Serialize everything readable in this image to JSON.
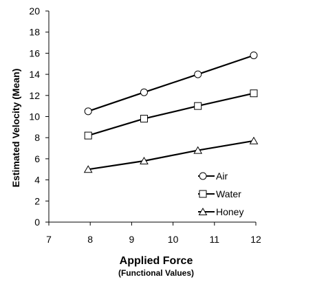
{
  "chart_data": {
    "type": "line",
    "xlabel": "Applied Force",
    "xlabel_sub": "(Functional Values)",
    "ylabel": "Estimated Velocity (Mean)",
    "xlim": [
      7,
      12
    ],
    "ylim": [
      0,
      20
    ],
    "x_ticks": [
      "7",
      "8",
      "9",
      "10",
      "11",
      "12"
    ],
    "y_ticks": [
      "0",
      "2",
      "4",
      "6",
      "8",
      "10",
      "12",
      "14",
      "16",
      "18",
      "20"
    ],
    "grid": false,
    "legend_position": "bottom-right",
    "series": [
      {
        "name": "Air",
        "marker": "circle",
        "x": [
          7.95,
          9.3,
          10.6,
          11.95
        ],
        "y": [
          10.5,
          12.3,
          14.0,
          15.8
        ]
      },
      {
        "name": "Water",
        "marker": "square",
        "x": [
          7.95,
          9.3,
          10.6,
          11.95
        ],
        "y": [
          8.2,
          9.8,
          11.0,
          12.2
        ]
      },
      {
        "name": "Honey",
        "marker": "triangle",
        "x": [
          7.95,
          9.3,
          10.6,
          11.95
        ],
        "y": [
          5.0,
          5.8,
          6.8,
          7.7
        ]
      }
    ]
  }
}
